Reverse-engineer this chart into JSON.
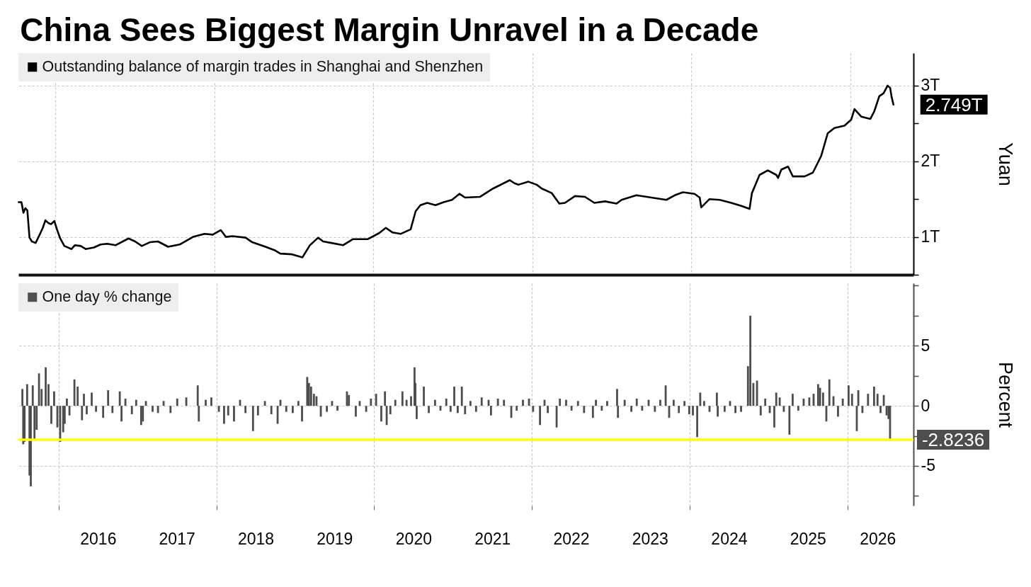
{
  "chart_data": [
    {
      "type": "line",
      "title": "China Sees Biggest Margin Unravel in a Decade",
      "ylabel": "Yuan",
      "x": [
        "2015-07-16",
        "2015-07-29",
        "2015-08-07",
        "2015-08-16",
        "2015-08-25",
        "2015-09-04",
        "2015-09-15",
        "2015-10-02",
        "2015-10-19",
        "2015-11-04",
        "2015-11-16",
        "2015-12-01",
        "2015-12-12",
        "2015-12-27",
        "2016-01-08",
        "2016-01-23",
        "2016-02-11",
        "2016-03-15",
        "2016-03-30",
        "2016-04-26",
        "2016-05-19",
        "2016-06-26",
        "2016-07-27",
        "2016-08-26",
        "2016-10-03",
        "2016-12-02",
        "2017-01-01",
        "2017-02-01",
        "2017-03-10",
        "2017-04-16",
        "2017-06-02",
        "2017-07-25",
        "2017-09-24",
        "2017-11-16",
        "2017-12-24",
        "2018-01-30",
        "2018-02-22",
        "2018-03-24",
        "2018-05-24",
        "2018-06-23",
        "2018-08-23",
        "2018-10-07",
        "2018-10-30",
        "2018-12-23",
        "2019-02-09",
        "2019-03-15",
        "2019-04-22",
        "2019-05-15",
        "2019-06-22",
        "2019-08-14",
        "2019-09-28",
        "2019-12-05",
        "2020-01-27",
        "2020-02-27",
        "2020-03-28",
        "2020-05-05",
        "2020-06-20",
        "2020-07-13",
        "2020-08-04",
        "2020-09-04",
        "2020-10-12",
        "2020-11-19",
        "2020-12-27",
        "2021-01-30",
        "2021-02-25",
        "2021-05-05",
        "2021-07-04",
        "2021-09-18",
        "2021-10-10",
        "2021-10-28",
        "2021-12-13",
        "2022-01-20",
        "2022-02-12",
        "2022-03-30",
        "2022-05-04",
        "2022-05-30",
        "2022-07-15",
        "2022-08-30",
        "2022-10-12",
        "2022-11-30",
        "2023-01-22",
        "2023-02-14",
        "2023-04-23",
        "2023-07-01",
        "2023-09-08",
        "2023-10-16",
        "2023-11-23",
        "2024-01-15",
        "2024-02-08",
        "2024-02-15",
        "2024-03-24",
        "2024-05-10",
        "2024-07-02",
        "2024-08-17",
        "2024-09-24",
        "2024-10-05",
        "2024-11-09",
        "2024-12-17",
        "2025-01-25",
        "2025-02-02",
        "2025-02-17",
        "2025-03-20",
        "2025-04-11",
        "2025-06-04",
        "2025-07-12",
        "2025-08-19",
        "2025-09-18",
        "2025-10-19",
        "2025-12-04",
        "2026-01-04",
        "2026-01-19",
        "2026-02-19",
        "2026-04-02",
        "2026-04-20",
        "2026-05-13",
        "2026-06-02",
        "2026-06-20",
        "2026-07-02",
        "2026-07-08",
        "2026-07-17"
      ],
      "series": [
        {
          "name": "Outstanding balance of margin trades in Shanghai and Shenzhen",
          "color": "#000000",
          "values": [
            1.46,
            1.46,
            1.32,
            1.38,
            1.35,
            0.99,
            0.94,
            0.92,
            1.02,
            1.12,
            1.22,
            1.18,
            1.17,
            1.21,
            1.1,
            0.98,
            0.88,
            0.84,
            0.89,
            0.88,
            0.84,
            0.86,
            0.9,
            0.91,
            0.89,
            0.98,
            0.94,
            0.88,
            0.93,
            0.94,
            0.87,
            0.9,
            1.0,
            1.04,
            1.03,
            1.09,
            1.0,
            1.01,
            0.99,
            0.93,
            0.87,
            0.82,
            0.78,
            0.77,
            0.73,
            0.89,
            0.99,
            0.94,
            0.92,
            0.89,
            0.97,
            0.97,
            1.05,
            1.12,
            1.06,
            1.04,
            1.1,
            1.34,
            1.42,
            1.45,
            1.42,
            1.46,
            1.49,
            1.57,
            1.52,
            1.53,
            1.64,
            1.75,
            1.71,
            1.69,
            1.73,
            1.69,
            1.64,
            1.58,
            1.44,
            1.45,
            1.54,
            1.53,
            1.45,
            1.47,
            1.44,
            1.49,
            1.55,
            1.52,
            1.49,
            1.55,
            1.59,
            1.57,
            1.52,
            1.39,
            1.5,
            1.49,
            1.45,
            1.41,
            1.37,
            1.58,
            1.82,
            1.88,
            1.82,
            1.78,
            1.89,
            1.93,
            1.8,
            1.8,
            1.85,
            2.07,
            2.37,
            2.44,
            2.47,
            2.55,
            2.69,
            2.59,
            2.56,
            2.66,
            2.86,
            2.9,
            3.0,
            2.97,
            2.86,
            2.749
          ]
        }
      ],
      "xlim": [
        "2015-07-15",
        "2026-10-17"
      ],
      "ylim": [
        0.5,
        3.43
      ],
      "xticks": [
        {
          "value": "2016-01-01",
          "label": null
        },
        {
          "value": "2018-01-01",
          "label": null
        },
        {
          "value": "2020-01-01",
          "label": null
        },
        {
          "value": "2022-01-01",
          "label": null
        },
        {
          "value": "2024-01-01",
          "label": null
        },
        {
          "value": "2026-01-01",
          "label": null
        }
      ],
      "yticks": [
        {
          "value": 0.5,
          "label": null
        },
        {
          "value": 1,
          "label": "1T"
        },
        {
          "value": 1.5,
          "label": null
        },
        {
          "value": 2,
          "label": "2T"
        },
        {
          "value": 2.5,
          "label": null
        },
        {
          "value": 3,
          "label": "3T"
        }
      ],
      "grid": true,
      "legend": "top left",
      "tick_labels": "y",
      "annotations": [
        {
          "text": "2.749T",
          "x": "2026-07-17",
          "y": 2.749
        }
      ]
    },
    {
      "type": "bar",
      "ylabel": "Percent",
      "x": [
        "2015-07-17",
        "2015-07-21",
        "2015-07-27",
        "2015-08-08",
        "2015-08-19",
        "2015-08-25",
        "2015-09-03",
        "2015-09-11",
        "2015-09-21",
        "2015-10-02",
        "2015-10-14",
        "2015-11-02",
        "2015-11-15",
        "2015-11-28",
        "2015-12-11",
        "2015-12-26",
        "2016-01-08",
        "2016-01-22",
        "2016-01-29",
        "2016-02-08",
        "2016-02-20",
        "2016-03-14",
        "2016-03-29",
        "2016-04-18",
        "2016-04-27",
        "2016-05-10",
        "2016-06-02",
        "2016-06-22",
        "2016-07-25",
        "2016-08-17",
        "2016-09-06",
        "2016-10-10",
        "2016-10-18",
        "2016-11-05",
        "2016-12-05",
        "2016-12-25",
        "2017-01-17",
        "2017-01-25",
        "2017-02-08",
        "2017-03-11",
        "2017-04-05",
        "2017-05-01",
        "2017-06-02",
        "2017-07-03",
        "2017-08-14",
        "2017-10-06",
        "2017-10-11",
        "2017-11-12",
        "2017-12-08",
        "2018-01-12",
        "2018-02-05",
        "2018-02-24",
        "2018-03-23",
        "2018-04-20",
        "2018-05-15",
        "2018-06-19",
        "2018-07-12",
        "2018-08-13",
        "2018-09-12",
        "2018-10-11",
        "2018-10-24",
        "2018-11-20",
        "2018-12-20",
        "2019-01-15",
        "2019-02-01",
        "2019-02-25",
        "2019-03-05",
        "2019-03-15",
        "2019-03-28",
        "2019-04-09",
        "2019-04-29",
        "2019-05-27",
        "2019-06-20",
        "2019-07-15",
        "2019-08-28",
        "2019-09-06",
        "2019-10-08",
        "2019-10-26",
        "2019-11-25",
        "2019-12-17",
        "2020-01-10",
        "2020-02-03",
        "2020-02-20",
        "2020-02-28",
        "2020-03-16",
        "2020-04-08",
        "2020-05-11",
        "2020-05-30",
        "2020-06-20",
        "2020-07-06",
        "2020-07-10",
        "2020-07-16",
        "2020-08-18",
        "2020-09-10",
        "2020-10-09",
        "2020-11-03",
        "2020-11-30",
        "2020-12-20",
        "2021-01-06",
        "2021-01-22",
        "2021-02-10",
        "2021-02-25",
        "2021-03-22",
        "2021-04-17",
        "2021-05-13",
        "2021-06-14",
        "2021-06-25",
        "2021-07-27",
        "2021-08-24",
        "2021-09-27",
        "2021-10-22",
        "2021-11-20",
        "2021-12-18",
        "2022-01-06",
        "2022-02-07",
        "2022-02-28",
        "2022-03-15",
        "2022-04-25",
        "2022-05-10",
        "2022-06-08",
        "2022-07-03",
        "2022-08-02",
        "2022-08-30",
        "2022-10-10",
        "2022-10-24",
        "2022-11-20",
        "2022-12-15",
        "2023-01-30",
        "2023-02-03",
        "2023-03-06",
        "2023-04-06",
        "2023-05-01",
        "2023-05-26",
        "2023-06-25",
        "2023-07-24",
        "2023-08-18",
        "2023-09-12",
        "2023-09-28",
        "2023-10-19",
        "2023-11-12",
        "2023-12-08",
        "2023-12-30",
        "2024-01-16",
        "2024-02-05",
        "2024-02-19",
        "2024-03-08",
        "2024-04-02",
        "2024-05-06",
        "2024-05-10",
        "2024-06-11",
        "2024-07-06",
        "2024-07-31",
        "2024-08-26",
        "2024-09-27",
        "2024-10-08",
        "2024-10-22",
        "2024-11-08",
        "2024-11-25",
        "2024-12-16",
        "2025-01-06",
        "2025-01-27",
        "2025-02-05",
        "2025-02-21",
        "2025-03-12",
        "2025-04-07",
        "2025-04-22",
        "2025-05-18",
        "2025-06-12",
        "2025-07-08",
        "2025-07-28",
        "2025-08-18",
        "2025-08-27",
        "2025-09-10",
        "2025-09-25",
        "2025-10-09",
        "2025-10-28",
        "2025-11-18",
        "2025-12-10",
        "2026-01-06",
        "2026-01-22",
        "2026-02-13",
        "2026-02-20",
        "2026-03-11",
        "2026-04-06",
        "2026-05-04",
        "2026-05-20",
        "2026-06-03",
        "2026-06-18",
        "2026-07-01",
        "2026-07-10",
        "2026-07-17"
      ],
      "series": [
        {
          "name": "One day % change",
          "color": "#4d4d4d",
          "values": [
            1.4,
            -3.2,
            -3.0,
            1.8,
            -5.8,
            -6.7,
            1.7,
            -2.8,
            -2.0,
            2.7,
            1.4,
            3.2,
            1.8,
            -1.5,
            1.2,
            -1.8,
            -3.0,
            -2.2,
            -1.5,
            0.6,
            -0.8,
            2.2,
            1.6,
            -1.2,
            1.0,
            -0.7,
            1.1,
            -0.5,
            -1.0,
            1.3,
            -0.6,
            1.2,
            -1.3,
            0.6,
            -0.7,
            0.5,
            -1.6,
            -1.3,
            0.4,
            -0.5,
            -0.6,
            0.4,
            -0.6,
            0.6,
            0.7,
            1.7,
            -1.3,
            0.5,
            0.7,
            -0.5,
            -1.5,
            -0.8,
            -1.3,
            0.5,
            -0.6,
            -2.1,
            -0.8,
            0.4,
            -0.7,
            -1.5,
            0.5,
            -0.5,
            -0.6,
            0.4,
            -1.3,
            2.4,
            1.9,
            1.6,
            1.0,
            0.8,
            -0.9,
            -0.5,
            0.4,
            -0.4,
            1.2,
            0.9,
            -0.9,
            0.4,
            -0.5,
            0.6,
            1.0,
            -1.3,
            1.2,
            -1.6,
            -0.7,
            0.5,
            1.2,
            0.5,
            0.8,
            3.2,
            1.9,
            -1.1,
            1.6,
            -0.6,
            0.5,
            -0.4,
            0.6,
            -0.5,
            1.6,
            -0.6,
            1.6,
            -0.7,
            0.4,
            -0.5,
            0.7,
            0.5,
            -0.8,
            0.6,
            0.5,
            -1.0,
            -0.4,
            0.5,
            0.6,
            -0.5,
            -1.6,
            0.5,
            -0.6,
            -1.8,
            0.6,
            0.5,
            -0.4,
            0.4,
            -0.6,
            -1.0,
            0.5,
            -0.4,
            0.4,
            1.4,
            -1.0,
            0.5,
            -0.5,
            0.6,
            -0.4,
            0.5,
            -0.5,
            0.5,
            1.7,
            -1.0,
            0.5,
            -0.6,
            0.4,
            -0.7,
            -0.8,
            -2.6,
            1.1,
            0.4,
            -0.5,
            1.1,
            -0.9,
            -0.5,
            0.4,
            -0.6,
            -0.5,
            3.3,
            7.5,
            1.9,
            2.1,
            -0.8,
            0.6,
            -0.6,
            -1.8,
            1.1,
            0.7,
            -0.5,
            -2.4,
            1.0,
            -0.4,
            0.6,
            0.7,
            1.0,
            1.8,
            1.5,
            1.1,
            -1.3,
            2.2,
            0.8,
            -0.9,
            0.6,
            1.7,
            1.0,
            -2.1,
            1.3,
            -0.6,
            1.0,
            1.6,
            1.0,
            -0.6,
            0.9,
            -0.8,
            -1.1,
            -2.8236
          ]
        }
      ],
      "xlim": [
        "2015-07-15",
        "2026-10-17"
      ],
      "ylim": [
        -8.3,
        10.2
      ],
      "xticks": [
        {
          "value": "2016-01-01",
          "label": null
        },
        {
          "value": "2016-07-01",
          "label": "2016"
        },
        {
          "value": "2017-07-01",
          "label": "2017"
        },
        {
          "value": "2018-01-01",
          "label": null
        },
        {
          "value": "2018-07-01",
          "label": "2018"
        },
        {
          "value": "2019-07-01",
          "label": "2019"
        },
        {
          "value": "2020-01-01",
          "label": null
        },
        {
          "value": "2020-07-01",
          "label": "2020"
        },
        {
          "value": "2021-07-01",
          "label": "2021"
        },
        {
          "value": "2022-01-01",
          "label": null
        },
        {
          "value": "2022-07-01",
          "label": "2022"
        },
        {
          "value": "2023-07-01",
          "label": "2023"
        },
        {
          "value": "2024-01-01",
          "label": null
        },
        {
          "value": "2024-07-01",
          "label": "2024"
        },
        {
          "value": "2025-07-01",
          "label": "2025"
        },
        {
          "value": "2026-01-01",
          "label": null
        },
        {
          "value": "2026-05-20",
          "label": "2026"
        }
      ],
      "yticks": [
        {
          "value": -7.5,
          "label": null
        },
        -5,
        {
          "value": -2.5,
          "label": null
        },
        0,
        {
          "value": 2.5,
          "label": null
        },
        5,
        {
          "value": 7.5,
          "label": null
        },
        {
          "value": 10,
          "label": null
        }
      ],
      "grid": true,
      "legend": "top left",
      "ref_lines": [
        {
          "axis": "y",
          "value": -2.8236,
          "color": "#ffff00"
        }
      ],
      "annotations": [
        {
          "text": "-2.8236",
          "x": "2026-07-17",
          "y": -2.8236
        }
      ]
    }
  ]
}
